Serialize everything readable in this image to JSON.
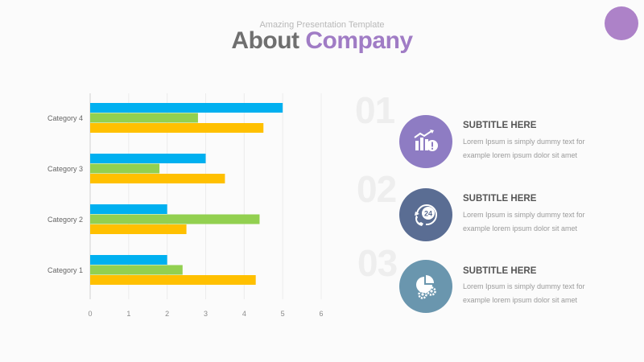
{
  "header": {
    "kicker": "Amazing Presentation Template",
    "title_part1": "About",
    "title_part2": "Company"
  },
  "colors": {
    "accent": "#a07cc5",
    "series_blue": "#00b0f0",
    "series_green": "#92d050",
    "series_yellow": "#ffc000",
    "circle_purple": "#8e7cc3",
    "circle_navy": "#5a6d93",
    "circle_steel": "#6a96ae"
  },
  "chart_data": {
    "type": "bar",
    "orientation": "horizontal",
    "categories": [
      "Category 1",
      "Category 2",
      "Category 3",
      "Category 4"
    ],
    "series": [
      {
        "values": [
          2,
          2,
          3,
          5
        ]
      },
      {
        "values": [
          2.4,
          4.4,
          1.8,
          2.8
        ]
      },
      {
        "values": [
          4.3,
          2.5,
          3.5,
          4.5
        ]
      }
    ],
    "xlim": [
      0,
      6
    ],
    "xticks": [
      "0",
      "1",
      "2",
      "3",
      "4",
      "5",
      "6"
    ]
  },
  "features": [
    {
      "number": "01",
      "icon": "chart-growth-icon",
      "title": "SUBTITLE HERE",
      "text": "Lorem Ipsum is simply dummy text for example lorem ipsum dolor sit amet"
    },
    {
      "number": "02",
      "icon": "phone-24-icon",
      "title": "SUBTITLE HERE",
      "text": "Lorem Ipsum is simply dummy text for example lorem ipsum dolor sit amet"
    },
    {
      "number": "03",
      "icon": "pie-gear-icon",
      "title": "SUBTITLE HERE",
      "text": "Lorem Ipsum is simply dummy text for example lorem ipsum dolor sit amet"
    }
  ]
}
